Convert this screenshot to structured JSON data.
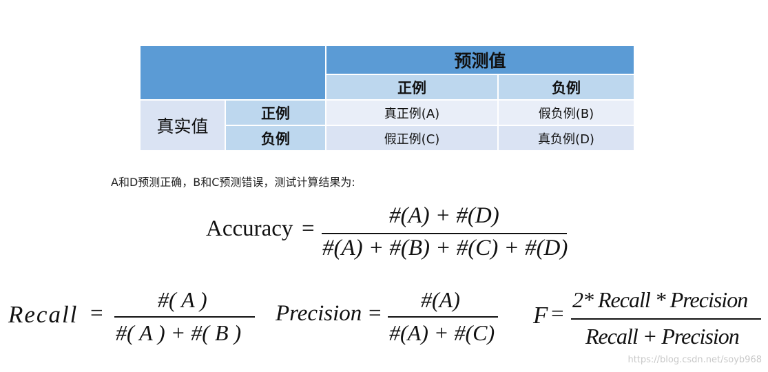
{
  "table": {
    "predicted_header": "预测值",
    "actual_header": "真实值",
    "pred_positive": "正例",
    "pred_negative": "负例",
    "actual_positive": "正例",
    "actual_negative": "负例",
    "tp": "真正例(A)",
    "fn": "假负例(B)",
    "fp": "假正例(C)",
    "tn": "真负例(D)"
  },
  "note": "A和D预测正确，B和C预测错误，测试计算结果为:",
  "accuracy": {
    "lhs": "Accuracy",
    "eq": "=",
    "numerator": "#(A) + #(D)",
    "denominator": "#(A) + #(B) + #(C) + #(D)"
  },
  "recall": {
    "lhs": "Recall",
    "eq": "=",
    "numerator": "#( A )",
    "denominator": "#( A ) + #( B )"
  },
  "precision": {
    "lhs": "Precision",
    "eq": "=",
    "numerator": "#(A)",
    "denominator": "#(A) + #(C)"
  },
  "fscore": {
    "lhs": "F",
    "eq": "=",
    "numerator": "2* Recall * Precision",
    "denominator": "Recall + Precision"
  },
  "watermark": "https://blog.csdn.net/soyb968",
  "colors": {
    "header_dark": "#5b9bd5",
    "header_mid": "#bdd7ee",
    "row_light": "#dae3f3"
  }
}
